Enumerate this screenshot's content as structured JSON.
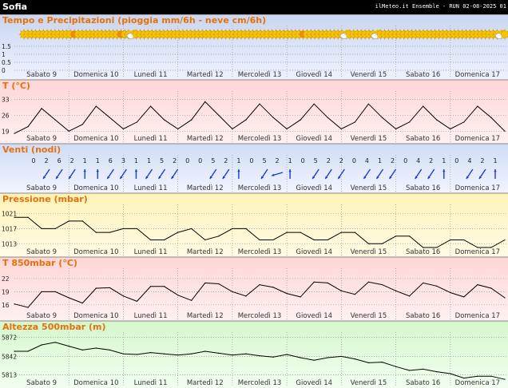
{
  "header": {
    "city": "Sofia",
    "source": "ilMeteo.it Ensemble - RUN 02-08-2025 01"
  },
  "days": [
    "Sabato 9",
    "Domenica 10",
    "Lunedì 11",
    "Martedì 12",
    "Mercoledì 13",
    "Giovedì 14",
    "Venerdì 15",
    "Sabato 16",
    "Domenica 17"
  ],
  "weather_icons": [
    "sun",
    "sun",
    "sun",
    "sun",
    "sun",
    "sun",
    "sun",
    "sun",
    "sun",
    "sun",
    "sun",
    "sun",
    "sun",
    "sun-orange",
    "sun",
    "sun",
    "sun",
    "sun",
    "sun",
    "sun",
    "sun",
    "sun",
    "sun",
    "sun",
    "sun",
    "sun-orange",
    "sun",
    "sun",
    "cloud-sun",
    "sun",
    "sun",
    "sun",
    "sun",
    "sun",
    "sun",
    "sun",
    "sun",
    "sun",
    "sun",
    "sun",
    "sun",
    "sun",
    "sun",
    "sun",
    "sun",
    "sun",
    "sun",
    "sun",
    "sun",
    "sun",
    "sun",
    "sun",
    "sun",
    "sun",
    "sun",
    "sun",
    "sun",
    "sun",
    "sun",
    "sun",
    "sun",
    "sun",
    "sun",
    "sun",
    "sun",
    "sun",
    "sun",
    "sun",
    "sun",
    "sun",
    "sun",
    "sun",
    "sun-orange",
    "sun",
    "sun",
    "sun",
    "sun",
    "sun",
    "sun",
    "sun",
    "sun",
    "sun",
    "sun",
    "cloud-sun",
    "sun",
    "sun",
    "sun",
    "sun",
    "sun",
    "sun",
    "sun",
    "cloud-sun",
    "sun",
    "sun",
    "sun",
    "sun",
    "sun",
    "sun",
    "sun",
    "sun",
    "sun",
    "sun",
    "sun",
    "sun",
    "sun",
    "sun",
    "sun",
    "sun",
    "sun",
    "sun",
    "sun",
    "sun",
    "sun",
    "sun",
    "sun",
    "sun",
    "sun",
    "sun",
    "sun",
    "sun",
    "sun",
    "sun",
    "sun",
    "cloud-sun",
    "sun"
  ],
  "wind": {
    "speeds": [
      "0",
      "2",
      "6",
      "2",
      "1",
      "1",
      "6",
      "3",
      "1",
      "1",
      "5",
      "2",
      "0",
      "0",
      "5",
      "2",
      "1",
      "0",
      "5",
      "2",
      "1",
      "0",
      "5",
      "2",
      "2",
      "0",
      "4",
      "1",
      "2",
      "0",
      "4",
      "2",
      "1",
      "0",
      "4",
      "2",
      "1"
    ],
    "directions": [
      "none",
      "sw",
      "sw",
      "sw",
      "up",
      "up",
      "sw",
      "sw",
      "up",
      "sw",
      "sw",
      "sw",
      "none",
      "none",
      "sw",
      "sw",
      "up",
      "none",
      "sw",
      "w",
      "up",
      "none",
      "sw",
      "sw",
      "sw",
      "none",
      "sw",
      "sw",
      "sw",
      "none",
      "sw",
      "sw",
      "up",
      "none",
      "sw",
      "sw",
      "up"
    ]
  },
  "colors": {
    "precip_bg_top": "#c9d6f0",
    "precip_bg_bottom": "#eef2ff",
    "temp_bg_top": "#ffd6d6",
    "temp_bg_bottom": "#fff0f0",
    "wind_bg_top": "#cfdcf5",
    "wind_bg_bottom": "#f2f5ff",
    "pressure_bg_top": "#fff2b8",
    "pressure_bg_bottom": "#fffbe6",
    "t850_bg_top": "#ffd6d6",
    "t850_bg_bottom": "#fff0f0",
    "z500_bg_top": "#d4f7cc",
    "z500_bg_bottom": "#f2fff0",
    "title": "#e8700a",
    "wind_arrow": "#1d3ec8",
    "line": "#000000"
  },
  "chart_data": [
    {
      "type": "area",
      "title": "Tempo e Precipitazioni (pioggia mm/6h - neve cm/6h)",
      "ylim": [
        0,
        2
      ],
      "yticks": [
        "1.5",
        "1",
        "0.5",
        "0"
      ],
      "categories_ref": "days",
      "series": [
        {
          "values": [
            0,
            0,
            0,
            0,
            0,
            0,
            0,
            0,
            0,
            0,
            0,
            0,
            0,
            0,
            0,
            0,
            0,
            0,
            0,
            0,
            0,
            0,
            0,
            0,
            0,
            0,
            0,
            0,
            0,
            0,
            0,
            0,
            0,
            0,
            0,
            0,
            0
          ]
        }
      ]
    },
    {
      "type": "line",
      "title": "T (°C)",
      "ylim": [
        17,
        36
      ],
      "yticks": [
        "33",
        "26",
        "19"
      ],
      "series": [
        {
          "values": [
            18,
            21,
            29,
            24,
            19,
            22,
            30,
            25,
            20,
            23,
            30,
            24,
            20,
            24,
            32,
            26,
            20,
            24,
            31,
            25,
            20,
            24,
            31,
            25,
            20,
            23,
            31,
            25,
            20,
            23,
            30,
            24,
            20,
            23,
            30,
            25,
            19
          ]
        }
      ]
    },
    {
      "type": "line",
      "title": "Pressione (mbar)",
      "ylim": [
        1012,
        1023
      ],
      "yticks": [
        "1021",
        "1017",
        "1013"
      ],
      "series": [
        {
          "values": [
            1020,
            1020,
            1017,
            1017,
            1019,
            1019,
            1016,
            1016,
            1017,
            1017,
            1014,
            1014,
            1016,
            1017,
            1014,
            1015,
            1017,
            1017,
            1014,
            1014,
            1016,
            1016,
            1014,
            1014,
            1016,
            1016,
            1013,
            1013,
            1015,
            1015,
            1012,
            1012,
            1014,
            1014,
            1012,
            1012,
            1014
          ]
        }
      ]
    },
    {
      "type": "line",
      "title": "T 850mbar (°C)",
      "ylim": [
        14.5,
        24
      ],
      "yticks": [
        "22",
        "19",
        "16"
      ],
      "series": [
        {
          "values": [
            16.2,
            15.4,
            19.0,
            19.0,
            17.6,
            16.4,
            19.8,
            19.9,
            18.0,
            16.8,
            20.2,
            20.2,
            18.2,
            17.0,
            21.0,
            20.8,
            19.0,
            18.0,
            20.6,
            20.0,
            18.6,
            17.8,
            21.2,
            21.0,
            19.2,
            18.4,
            21.2,
            20.6,
            19.2,
            18.0,
            21.0,
            20.3,
            18.8,
            17.8,
            20.6,
            19.8,
            17.6
          ]
        }
      ]
    },
    {
      "type": "line",
      "title": "Altezza 500mbar (m)",
      "ylim": [
        5805,
        5880
      ],
      "yticks": [
        "5872",
        "5842",
        "5813"
      ],
      "series": [
        {
          "values": [
            5850,
            5850,
            5860,
            5864,
            5858,
            5852,
            5855,
            5852,
            5846,
            5845,
            5848,
            5846,
            5844,
            5846,
            5850,
            5847,
            5844,
            5846,
            5843,
            5841,
            5845,
            5840,
            5836,
            5840,
            5842,
            5838,
            5832,
            5833,
            5826,
            5820,
            5822,
            5818,
            5815,
            5808,
            5811,
            5811,
            5806
          ]
        }
      ]
    }
  ]
}
